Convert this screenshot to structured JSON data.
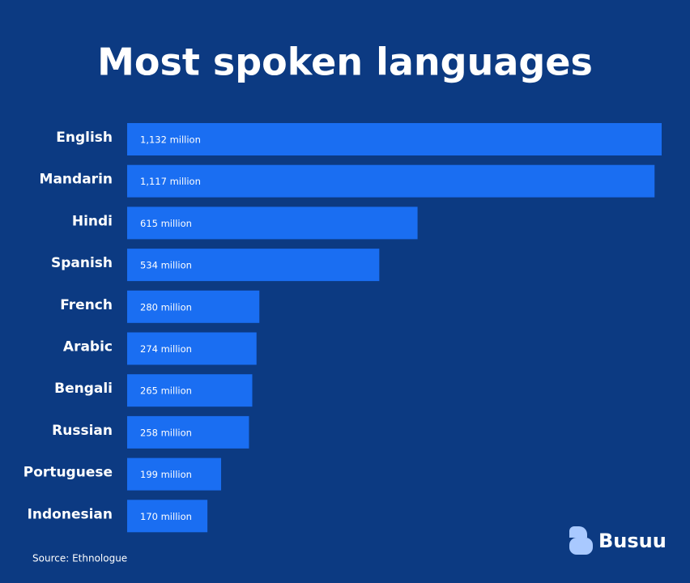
{
  "chart_data": {
    "type": "bar",
    "orientation": "horizontal",
    "title": "Most spoken languages",
    "categories": [
      "English",
      "Mandarin",
      "Hindi",
      "Spanish",
      "French",
      "Arabic",
      "Bengali",
      "Russian",
      "Portuguese",
      "Indonesian"
    ],
    "values": [
      1132,
      1117,
      615,
      534,
      280,
      274,
      265,
      258,
      199,
      170
    ],
    "value_labels": [
      "1,132 million",
      "1,117 million",
      "615 million",
      "534 million",
      "280 million",
      "274 million",
      "265 million",
      "258 million",
      "199 million",
      "170 million"
    ],
    "color": "#1a6ef2"
  },
  "source": "Source: Ethnologue",
  "brand": "Busuu"
}
